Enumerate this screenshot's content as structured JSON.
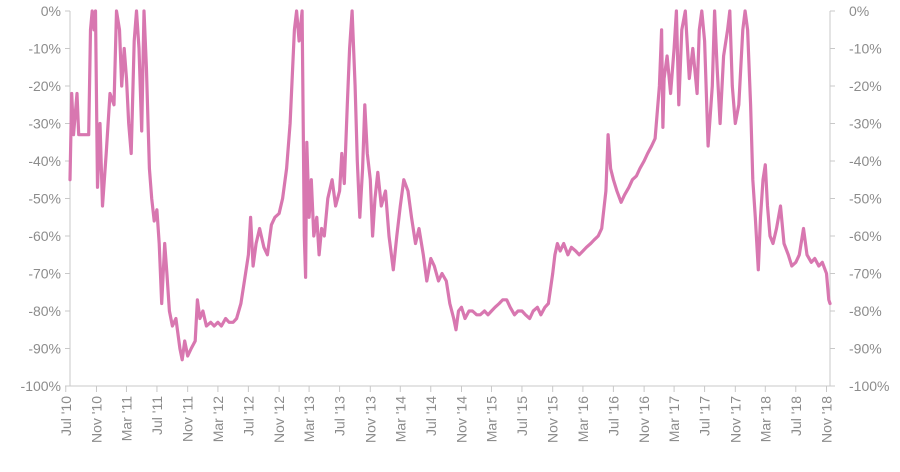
{
  "chart_data": {
    "type": "line",
    "title": "",
    "xlabel": "",
    "ylabel": "",
    "ylim": [
      -100,
      0
    ],
    "y_axes": [
      "left",
      "right"
    ],
    "grid": false,
    "legend": "none",
    "line_color": "#d877b0",
    "axis_color": "#c8c8c8",
    "label_color": "#8c8c8c",
    "y_ticks": [
      {
        "value": 0,
        "label": "0%"
      },
      {
        "value": -10,
        "label": "-10%"
      },
      {
        "value": -20,
        "label": "-20%"
      },
      {
        "value": -30,
        "label": "-30%"
      },
      {
        "value": -40,
        "label": "-40%"
      },
      {
        "value": -50,
        "label": "-50%"
      },
      {
        "value": -60,
        "label": "-60%"
      },
      {
        "value": -70,
        "label": "-70%"
      },
      {
        "value": -80,
        "label": "-80%"
      },
      {
        "value": -90,
        "label": "-90%"
      },
      {
        "value": -100,
        "label": "-100%"
      }
    ],
    "x_ticks": [
      {
        "value": "2010-07",
        "label": "Jul '10"
      },
      {
        "value": "2010-11",
        "label": "Nov '10"
      },
      {
        "value": "2011-03",
        "label": "Mar '11"
      },
      {
        "value": "2011-07",
        "label": "Jul '11"
      },
      {
        "value": "2011-11",
        "label": "Nov '11"
      },
      {
        "value": "2012-03",
        "label": "Mar '12"
      },
      {
        "value": "2012-07",
        "label": "Jul '12"
      },
      {
        "value": "2012-11",
        "label": "Nov '12"
      },
      {
        "value": "2013-03",
        "label": "Mar '13"
      },
      {
        "value": "2013-07",
        "label": "Jul '13"
      },
      {
        "value": "2013-11",
        "label": "Nov '13"
      },
      {
        "value": "2014-03",
        "label": "Mar '14"
      },
      {
        "value": "2014-07",
        "label": "Jul '14"
      },
      {
        "value": "2014-11",
        "label": "Nov '14"
      },
      {
        "value": "2015-03",
        "label": "Mar '15"
      },
      {
        "value": "2015-07",
        "label": "Jul '15"
      },
      {
        "value": "2015-11",
        "label": "Nov '15"
      },
      {
        "value": "2016-03",
        "label": "Mar '16"
      },
      {
        "value": "2016-07",
        "label": "Jul '16"
      },
      {
        "value": "2016-11",
        "label": "Nov '16"
      },
      {
        "value": "2017-03",
        "label": "Mar '17"
      },
      {
        "value": "2017-07",
        "label": "Jul '17"
      },
      {
        "value": "2017-11",
        "label": "Nov '17"
      },
      {
        "value": "2018-03",
        "label": "Mar '18"
      },
      {
        "value": "2018-07",
        "label": "Jul '18"
      },
      {
        "value": "2018-11",
        "label": "Nov '18"
      }
    ],
    "series": [
      {
        "values": [
          [
            "2010-07-18",
            -45
          ],
          [
            "2010-07-25",
            -22
          ],
          [
            "2010-08-01",
            -33
          ],
          [
            "2010-08-15",
            -22
          ],
          [
            "2010-08-22",
            -33
          ],
          [
            "2010-09-15",
            -33
          ],
          [
            "2010-10-01",
            -33
          ],
          [
            "2010-10-08",
            -5
          ],
          [
            "2010-10-15",
            0
          ],
          [
            "2010-10-22",
            -5
          ],
          [
            "2010-10-28",
            0
          ],
          [
            "2010-11-05",
            -47
          ],
          [
            "2010-11-15",
            -30
          ],
          [
            "2010-11-25",
            -52
          ],
          [
            "2010-12-10",
            -38
          ],
          [
            "2010-12-25",
            -22
          ],
          [
            "2011-01-10",
            -25
          ],
          [
            "2011-01-20",
            0
          ],
          [
            "2011-02-01",
            -5
          ],
          [
            "2011-02-10",
            -20
          ],
          [
            "2011-02-20",
            -10
          ],
          [
            "2011-03-01",
            -18
          ],
          [
            "2011-03-10",
            -30
          ],
          [
            "2011-03-20",
            -38
          ],
          [
            "2011-04-01",
            -8
          ],
          [
            "2011-04-10",
            0
          ],
          [
            "2011-04-20",
            -10
          ],
          [
            "2011-05-01",
            -32
          ],
          [
            "2011-05-10",
            0
          ],
          [
            "2011-05-20",
            -15
          ],
          [
            "2011-06-01",
            -42
          ],
          [
            "2011-06-10",
            -50
          ],
          [
            "2011-06-20",
            -56
          ],
          [
            "2011-07-01",
            -53
          ],
          [
            "2011-07-10",
            -62
          ],
          [
            "2011-07-20",
            -78
          ],
          [
            "2011-08-01",
            -62
          ],
          [
            "2011-08-10",
            -70
          ],
          [
            "2011-08-20",
            -80
          ],
          [
            "2011-09-01",
            -84
          ],
          [
            "2011-09-15",
            -82
          ],
          [
            "2011-10-01",
            -90
          ],
          [
            "2011-10-10",
            -93
          ],
          [
            "2011-10-20",
            -88
          ],
          [
            "2011-11-01",
            -92
          ],
          [
            "2011-11-15",
            -90
          ],
          [
            "2011-12-01",
            -88
          ],
          [
            "2011-12-10",
            -77
          ],
          [
            "2011-12-20",
            -82
          ],
          [
            "2012-01-01",
            -80
          ],
          [
            "2012-01-15",
            -84
          ],
          [
            "2012-02-01",
            -83
          ],
          [
            "2012-02-15",
            -84
          ],
          [
            "2012-03-01",
            -83
          ],
          [
            "2012-03-15",
            -84
          ],
          [
            "2012-04-01",
            -82
          ],
          [
            "2012-04-15",
            -83
          ],
          [
            "2012-05-01",
            -83
          ],
          [
            "2012-05-15",
            -82
          ],
          [
            "2012-06-01",
            -78
          ],
          [
            "2012-06-15",
            -72
          ],
          [
            "2012-07-01",
            -65
          ],
          [
            "2012-07-10",
            -55
          ],
          [
            "2012-07-20",
            -68
          ],
          [
            "2012-08-01",
            -62
          ],
          [
            "2012-08-15",
            -58
          ],
          [
            "2012-09-01",
            -63
          ],
          [
            "2012-09-15",
            -65
          ],
          [
            "2012-10-01",
            -57
          ],
          [
            "2012-10-15",
            -55
          ],
          [
            "2012-11-01",
            -54
          ],
          [
            "2012-11-15",
            -50
          ],
          [
            "2012-12-01",
            -42
          ],
          [
            "2012-12-15",
            -30
          ],
          [
            "2013-01-01",
            -5
          ],
          [
            "2013-01-10",
            0
          ],
          [
            "2013-01-20",
            -8
          ],
          [
            "2013-02-01",
            0
          ],
          [
            "2013-02-10",
            -60
          ],
          [
            "2013-02-15",
            -71
          ],
          [
            "2013-02-20",
            -35
          ],
          [
            "2013-03-01",
            -55
          ],
          [
            "2013-03-10",
            -45
          ],
          [
            "2013-03-20",
            -60
          ],
          [
            "2013-04-01",
            -55
          ],
          [
            "2013-04-10",
            -65
          ],
          [
            "2013-04-20",
            -58
          ],
          [
            "2013-05-01",
            -60
          ],
          [
            "2013-05-15",
            -50
          ],
          [
            "2013-06-01",
            -45
          ],
          [
            "2013-06-15",
            -52
          ],
          [
            "2013-07-01",
            -48
          ],
          [
            "2013-07-10",
            -38
          ],
          [
            "2013-07-20",
            -46
          ],
          [
            "2013-08-01",
            -25
          ],
          [
            "2013-08-10",
            -10
          ],
          [
            "2013-08-20",
            0
          ],
          [
            "2013-09-01",
            -20
          ],
          [
            "2013-09-10",
            -40
          ],
          [
            "2013-09-20",
            -55
          ],
          [
            "2013-10-01",
            -42
          ],
          [
            "2013-10-10",
            -25
          ],
          [
            "2013-10-20",
            -38
          ],
          [
            "2013-11-01",
            -45
          ],
          [
            "2013-11-10",
            -60
          ],
          [
            "2013-11-20",
            -50
          ],
          [
            "2013-12-01",
            -43
          ],
          [
            "2013-12-15",
            -52
          ],
          [
            "2014-01-01",
            -48
          ],
          [
            "2014-01-15",
            -60
          ],
          [
            "2014-02-01",
            -69
          ],
          [
            "2014-02-15",
            -60
          ],
          [
            "2014-03-01",
            -52
          ],
          [
            "2014-03-15",
            -45
          ],
          [
            "2014-04-01",
            -48
          ],
          [
            "2014-04-15",
            -55
          ],
          [
            "2014-05-01",
            -62
          ],
          [
            "2014-05-15",
            -58
          ],
          [
            "2014-06-01",
            -65
          ],
          [
            "2014-06-15",
            -72
          ],
          [
            "2014-07-01",
            -66
          ],
          [
            "2014-07-15",
            -68
          ],
          [
            "2014-08-01",
            -72
          ],
          [
            "2014-08-15",
            -70
          ],
          [
            "2014-09-01",
            -72
          ],
          [
            "2014-09-15",
            -78
          ],
          [
            "2014-10-01",
            -82
          ],
          [
            "2014-10-10",
            -85
          ],
          [
            "2014-10-20",
            -80
          ],
          [
            "2014-11-01",
            -79
          ],
          [
            "2014-11-15",
            -82
          ],
          [
            "2014-12-01",
            -80
          ],
          [
            "2014-12-15",
            -80
          ],
          [
            "2015-01-01",
            -81
          ],
          [
            "2015-01-15",
            -81
          ],
          [
            "2015-02-01",
            -80
          ],
          [
            "2015-02-15",
            -81
          ],
          [
            "2015-03-01",
            -80
          ],
          [
            "2015-03-15",
            -79
          ],
          [
            "2015-04-01",
            -78
          ],
          [
            "2015-04-15",
            -77
          ],
          [
            "2015-05-01",
            -77
          ],
          [
            "2015-05-15",
            -79
          ],
          [
            "2015-06-01",
            -81
          ],
          [
            "2015-06-15",
            -80
          ],
          [
            "2015-07-01",
            -80
          ],
          [
            "2015-07-15",
            -81
          ],
          [
            "2015-08-01",
            -82
          ],
          [
            "2015-08-15",
            -80
          ],
          [
            "2015-09-01",
            -79
          ],
          [
            "2015-09-15",
            -81
          ],
          [
            "2015-10-01",
            -79
          ],
          [
            "2015-10-15",
            -78
          ],
          [
            "2015-11-01",
            -70
          ],
          [
            "2015-11-10",
            -65
          ],
          [
            "2015-11-20",
            -62
          ],
          [
            "2015-12-01",
            -64
          ],
          [
            "2015-12-15",
            -62
          ],
          [
            "2016-01-01",
            -65
          ],
          [
            "2016-01-15",
            -63
          ],
          [
            "2016-02-01",
            -64
          ],
          [
            "2016-02-15",
            -65
          ],
          [
            "2016-03-01",
            -64
          ],
          [
            "2016-03-15",
            -63
          ],
          [
            "2016-04-01",
            -62
          ],
          [
            "2016-04-15",
            -61
          ],
          [
            "2016-05-01",
            -60
          ],
          [
            "2016-05-15",
            -58
          ],
          [
            "2016-06-01",
            -48
          ],
          [
            "2016-06-10",
            -33
          ],
          [
            "2016-06-20",
            -42
          ],
          [
            "2016-07-01",
            -45
          ],
          [
            "2016-07-15",
            -48
          ],
          [
            "2016-08-01",
            -51
          ],
          [
            "2016-08-15",
            -49
          ],
          [
            "2016-09-01",
            -47
          ],
          [
            "2016-09-15",
            -45
          ],
          [
            "2016-10-01",
            -44
          ],
          [
            "2016-10-15",
            -42
          ],
          [
            "2016-11-01",
            -40
          ],
          [
            "2016-11-15",
            -38
          ],
          [
            "2016-12-01",
            -36
          ],
          [
            "2016-12-15",
            -34
          ],
          [
            "2017-01-01",
            -20
          ],
          [
            "2017-01-10",
            -5
          ],
          [
            "2017-01-15",
            -31
          ],
          [
            "2017-01-20",
            -18
          ],
          [
            "2017-02-01",
            -12
          ],
          [
            "2017-02-15",
            -22
          ],
          [
            "2017-03-01",
            -10
          ],
          [
            "2017-03-10",
            0
          ],
          [
            "2017-03-20",
            -25
          ],
          [
            "2017-04-01",
            -5
          ],
          [
            "2017-04-15",
            0
          ],
          [
            "2017-05-01",
            -18
          ],
          [
            "2017-05-15",
            -10
          ],
          [
            "2017-06-01",
            -22
          ],
          [
            "2017-06-10",
            -5
          ],
          [
            "2017-06-20",
            0
          ],
          [
            "2017-07-01",
            -8
          ],
          [
            "2017-07-15",
            -36
          ],
          [
            "2017-08-01",
            -20
          ],
          [
            "2017-08-10",
            0
          ],
          [
            "2017-08-20",
            -15
          ],
          [
            "2017-09-01",
            -30
          ],
          [
            "2017-09-15",
            -12
          ],
          [
            "2017-10-01",
            -5
          ],
          [
            "2017-10-10",
            0
          ],
          [
            "2017-10-20",
            -20
          ],
          [
            "2017-11-01",
            -30
          ],
          [
            "2017-11-15",
            -25
          ],
          [
            "2017-12-01",
            -5
          ],
          [
            "2017-12-10",
            0
          ],
          [
            "2017-12-20",
            -5
          ],
          [
            "2018-01-01",
            -25
          ],
          [
            "2018-01-10",
            -45
          ],
          [
            "2018-01-20",
            -55
          ],
          [
            "2018-02-01",
            -69
          ],
          [
            "2018-02-10",
            -55
          ],
          [
            "2018-02-20",
            -45
          ],
          [
            "2018-03-01",
            -41
          ],
          [
            "2018-03-10",
            -52
          ],
          [
            "2018-03-20",
            -60
          ],
          [
            "2018-04-01",
            -62
          ],
          [
            "2018-04-15",
            -58
          ],
          [
            "2018-05-01",
            -52
          ],
          [
            "2018-05-15",
            -62
          ],
          [
            "2018-06-01",
            -65
          ],
          [
            "2018-06-15",
            -68
          ],
          [
            "2018-07-01",
            -67
          ],
          [
            "2018-07-15",
            -65
          ],
          [
            "2018-08-01",
            -58
          ],
          [
            "2018-08-15",
            -65
          ],
          [
            "2018-09-01",
            -67
          ],
          [
            "2018-09-15",
            -66
          ],
          [
            "2018-10-01",
            -68
          ],
          [
            "2018-10-15",
            -67
          ],
          [
            "2018-11-01",
            -70
          ],
          [
            "2018-11-10",
            -77
          ],
          [
            "2018-11-15",
            -78
          ]
        ]
      }
    ]
  }
}
